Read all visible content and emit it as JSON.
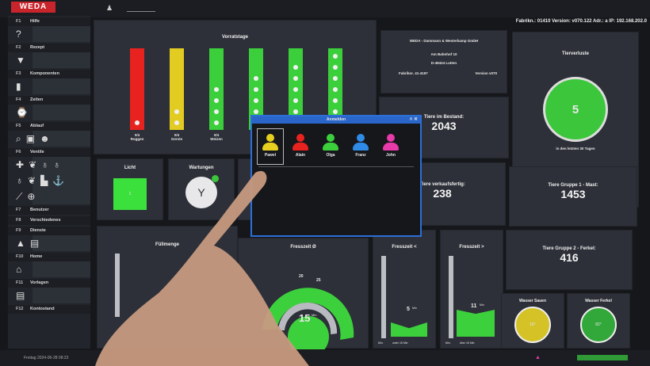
{
  "header": {
    "logo": "WEDA",
    "status": "Fabrikn.: 01410  Version: v070.122  Adr.: a  IP: 192.168.202.0"
  },
  "sidebar": {
    "sections": [
      {
        "key": "F1",
        "label": "Hilfe",
        "icons": [
          "help-icon"
        ]
      },
      {
        "key": "F2",
        "label": "Rezept",
        "icons": [
          "recipe-icon"
        ]
      },
      {
        "key": "F3",
        "label": "Komponenten",
        "icons": [
          "silo-icon"
        ]
      },
      {
        "key": "F4",
        "label": "Zeiten",
        "icons": [
          "clock-icon"
        ]
      },
      {
        "key": "F5",
        "label": "Ablauf",
        "icons": [
          "search-icon",
          "monitor-icon",
          "workers-icon"
        ]
      },
      {
        "key": "F6",
        "label": "Ventile",
        "icons": [
          "valve-icon",
          "pig-icon",
          "bulb-icon",
          "bulb-icon",
          "bulb-icon",
          "pig-icon",
          "chart-icon",
          "anchor-icon",
          "graph-icon",
          "crosshair-icon"
        ]
      },
      {
        "key": "F7",
        "label": "Benutzer",
        "icons": []
      },
      {
        "key": "F8",
        "label": "Verschiedenes",
        "icons": []
      },
      {
        "key": "F9",
        "label": "Dienste",
        "icons": [
          "bell-icon",
          "document-icon"
        ]
      },
      {
        "key": "F10",
        "label": "Home",
        "icons": [
          "home-icon"
        ]
      },
      {
        "key": "F11",
        "label": "Vorlagen",
        "icons": [
          "document-icon"
        ]
      },
      {
        "key": "F12",
        "label": "Kontostand",
        "icons": []
      }
    ],
    "datetime": "Freitag 2024-06-28 08:23"
  },
  "vorratstage": {
    "title": "Vorratstage",
    "bars": [
      {
        "color": "#e8231f",
        "dots": 1,
        "label": "0/4",
        "name": "Roggen"
      },
      {
        "color": "#e3cc22",
        "dots": 2,
        "label": "0/4",
        "name": "Gerste"
      },
      {
        "color": "#3ccf3c",
        "dots": 4,
        "label": "0/4",
        "name": "Weizen"
      },
      {
        "color": "#3ccf3c",
        "dots": 5,
        "label": "",
        "name": ""
      },
      {
        "color": "#3ccf3c",
        "dots": 6,
        "label": "",
        "name": ""
      },
      {
        "color": "#3ccf3c",
        "dots": 7,
        "label": "",
        "name": ""
      }
    ]
  },
  "company": {
    "name": "WEDA - Dammann & Westerkamp GmbH",
    "street": "Am Bahnhof 10",
    "city": "D-49424 Lutten",
    "fabrik": "Fabriknr. 41-4197",
    "version": "Version v070"
  },
  "tierverluste": {
    "title": "Tierverluste",
    "value": "5",
    "sub": "in den letzten 30 Tagen"
  },
  "bestand": {
    "title": "Tiere im Bestand:",
    "value": "2043"
  },
  "verkauf": {
    "title": "Tiere verkaufsfertig:",
    "value": "238"
  },
  "gruppe1": {
    "title": "Tiere Gruppe 1 - Mast:",
    "value": "1453"
  },
  "gruppe2": {
    "title": "Tiere Gruppe 2 - Ferkel:",
    "value": "416"
  },
  "licht": {
    "title": "Licht",
    "value": "1"
  },
  "wartungen": {
    "title": "Wartungen"
  },
  "fuellmenge": {
    "title": "Füllmenge"
  },
  "fresszeit": {
    "title": "Fresszeit Ø",
    "value": "15",
    "unit": "Min",
    "ticks": [
      "20",
      "25"
    ]
  },
  "fresszeit_lt": {
    "title": "Fresszeit <",
    "value": "5",
    "unit": "Min",
    "min": "Min.",
    "sub": "unter 15 Min"
  },
  "fresszeit_gt": {
    "title": "Fresszeit >",
    "value": "11",
    "unit": "Min",
    "min": "Min.",
    "sub": "über 15 Min"
  },
  "wasser_sauen": {
    "title": "Wasser Sauen",
    "value": "16°"
  },
  "wasser_ferkel": {
    "title": "Wasser Ferkel",
    "value": "82°"
  },
  "login": {
    "title": "Anmelden",
    "users": [
      {
        "name": "Pawel",
        "color": "#e6cf1e",
        "selected": true
      },
      {
        "name": "Alain",
        "color": "#e8231f"
      },
      {
        "name": "Olga",
        "color": "#3ccf3c"
      },
      {
        "name": "Franz",
        "color": "#2f8be6"
      },
      {
        "name": "John",
        "color": "#e83aa8"
      }
    ]
  }
}
